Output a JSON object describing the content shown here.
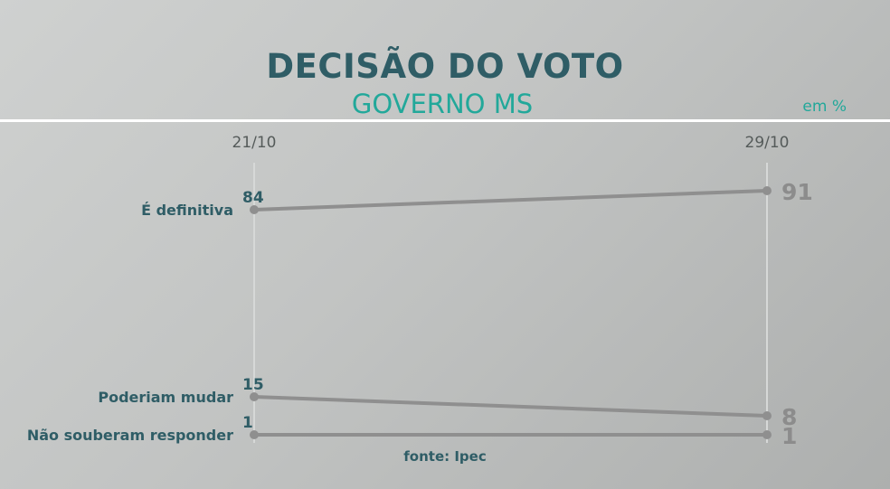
{
  "header": {
    "title": "DECISÃO DO VOTO",
    "subtitle": "GOVERNO MS",
    "unit": "em %"
  },
  "footer": {
    "source": "fonte: Ipec"
  },
  "colors": {
    "title": "#2f5d66",
    "subtitle": "#22a89a",
    "line": "#8f8f8f",
    "end_value": "#8c8c8c"
  },
  "chart_data": {
    "type": "line",
    "x": [
      "21/10",
      "29/10"
    ],
    "series": [
      {
        "name": "É definitiva",
        "values": [
          84,
          91
        ]
      },
      {
        "name": "Poderiam mudar",
        "values": [
          15,
          8
        ]
      },
      {
        "name": "Não souberam responder",
        "values": [
          1,
          1
        ]
      }
    ],
    "ylim": [
      0,
      100
    ],
    "grid": false
  }
}
